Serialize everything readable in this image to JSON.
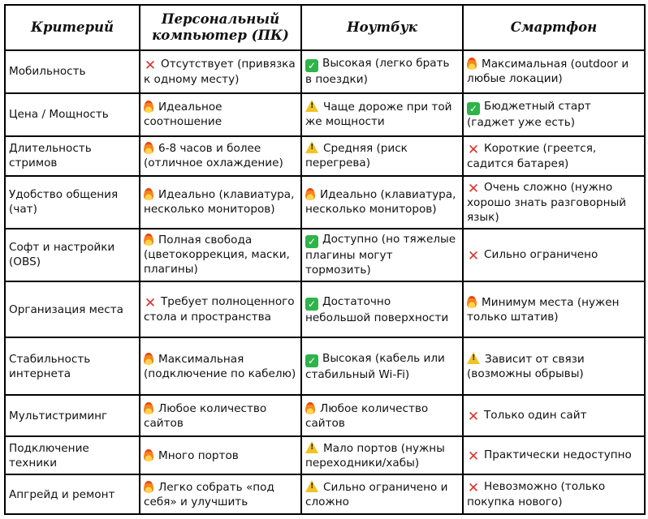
{
  "headers": [
    "Критерий",
    "Персональный компьютер (ПК)",
    "Ноутбук",
    "Смартфон"
  ],
  "rows": [
    {
      "criterion": "Мобильность",
      "cells": [
        {
          "icon": "cross-mark-icon",
          "text": "Отсутствует (привязка к одному месту)"
        },
        {
          "icon": "check-mark-icon",
          "text": "Высокая (легко брать в поездки)"
        },
        {
          "icon": "fire-icon",
          "text": "Максимальная (outdoor и любые локации)"
        }
      ]
    },
    {
      "criterion": "Цена / Мощность",
      "cells": [
        {
          "icon": "fire-icon",
          "text": "Идеальное соотношение"
        },
        {
          "icon": "warning-icon",
          "text": "Чаще дороже при той же мощности"
        },
        {
          "icon": "check-mark-icon",
          "text": "Бюджетный старт (гаджет уже есть)"
        }
      ]
    },
    {
      "criterion": "Длительность стримов",
      "cells": [
        {
          "icon": "fire-icon",
          "text": "6-8 часов и более (отличное охлаждение)"
        },
        {
          "icon": "warning-icon",
          "text": "Средняя (риск перегрева)"
        },
        {
          "icon": "cross-mark-icon",
          "text": "Короткие (греется, садится батарея)"
        }
      ]
    },
    {
      "criterion": "Удобство общения (чат)",
      "cells": [
        {
          "icon": "fire-icon",
          "text": "Идеально (клавиатура, несколько мониторов)"
        },
        {
          "icon": "fire-icon",
          "text": "Идеально (клавиатура, несколько мониторов)"
        },
        {
          "icon": "cross-mark-icon",
          "text": "Очень сложно (нужно хорошо знать разговорный язык)"
        }
      ]
    },
    {
      "criterion": "Софт и настройки (OBS)",
      "cells": [
        {
          "icon": "fire-icon",
          "text": "Полная свобода (цветокоррекция, маски, плагины)"
        },
        {
          "icon": "check-mark-icon",
          "text": "Доступно (но тяжелые плагины могут тормозить)"
        },
        {
          "icon": "cross-mark-icon",
          "text": "Сильно ограничено"
        }
      ]
    },
    {
      "criterion": "Организация места",
      "cells": [
        {
          "icon": "cross-mark-icon",
          "text": "Требует полноценного стола и пространства"
        },
        {
          "icon": "check-mark-icon",
          "text": "Достаточно небольшой поверхности"
        },
        {
          "icon": "fire-icon",
          "text": "Минимум места (нужен только штатив)"
        }
      ]
    },
    {
      "criterion": "Стабильность интернета",
      "cells": [
        {
          "icon": "fire-icon",
          "text": "Максимальная (подключение по кабелю)"
        },
        {
          "icon": "check-mark-icon",
          "text": "Высокая (кабель или стабильный Wi-Fi)"
        },
        {
          "icon": "warning-icon",
          "text": "Зависит от связи (возможны обрывы)"
        }
      ]
    },
    {
      "criterion": "Мультистриминг",
      "cells": [
        {
          "icon": "fire-icon",
          "text": "Любое количество сайтов"
        },
        {
          "icon": "fire-icon",
          "text": "Любое количество сайтов"
        },
        {
          "icon": "cross-mark-icon",
          "text": "Только один сайт"
        }
      ]
    },
    {
      "criterion": "Подключение техники",
      "cells": [
        {
          "icon": "fire-icon",
          "text": "Много портов"
        },
        {
          "icon": "warning-icon",
          "text": "Мало портов (нужны переходники/хабы)"
        },
        {
          "icon": "cross-mark-icon",
          "text": "Практически недоступно"
        }
      ]
    },
    {
      "criterion": "Апгрейд и ремонт",
      "cells": [
        {
          "icon": "fire-icon",
          "text": "Легко собрать «под себя» и улучшить"
        },
        {
          "icon": "warning-icon",
          "text": "Сильно ограничено и сложно"
        },
        {
          "icon": "cross-mark-icon",
          "text": "Невозможно (только покупка нового)"
        }
      ]
    }
  ]
}
